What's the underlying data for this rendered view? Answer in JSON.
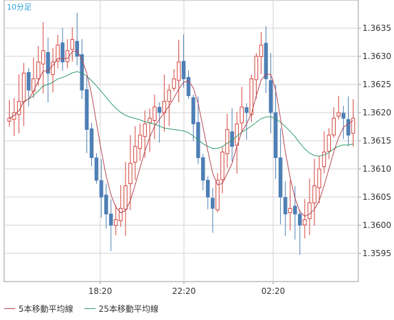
{
  "chart_data": {
    "type": "candlestick",
    "timeframe_label": "10分足",
    "x_tick_labels": [
      "18:20",
      "22:20",
      "02:20"
    ],
    "ylim": [
      1.359,
      1.364
    ],
    "y_ticks": [
      "1.3595",
      "1.3600",
      "1.3605",
      "1.3610",
      "1.3615",
      "1.3620",
      "1.3625",
      "1.3630",
      "1.3635"
    ],
    "grid": true,
    "colors": {
      "up": "#d4443c",
      "down": "#4e7fb5",
      "ma5": "#b64552",
      "ma25": "#2f9c6a",
      "grid": "#d2d2d2",
      "frame": "#999999"
    },
    "legend": [
      {
        "name": "5本移動平均線",
        "color": "#b64552"
      },
      {
        "name": "25本移動平均線",
        "color": "#2f9c6a"
      }
    ],
    "close": [
      1.3619,
      1.362,
      1.3622,
      1.3627,
      1.3624,
      1.3626,
      1.3629,
      1.3631,
      1.3627,
      1.3629,
      1.3632,
      1.3629,
      1.3631,
      1.3633,
      1.363,
      1.3624,
      1.3617,
      1.3612,
      1.3608,
      1.3605,
      1.3602,
      1.36,
      1.3601,
      1.3603,
      1.3607,
      1.3611,
      1.3614,
      1.3616,
      1.3618,
      1.3619,
      1.3621,
      1.362,
      1.3622,
      1.3624,
      1.3626,
      1.3629,
      1.3626,
      1.3623,
      1.3618,
      1.3612,
      1.3608,
      1.3605,
      1.3603,
      1.3608,
      1.3613,
      1.3617,
      1.3614,
      1.3618,
      1.3621,
      1.362,
      1.3626,
      1.363,
      1.3632,
      1.3626,
      1.362,
      1.3612,
      1.3605,
      1.3602,
      1.3603,
      1.3602,
      1.36,
      1.3601,
      1.3604,
      1.3607,
      1.361,
      1.3613,
      1.3616,
      1.3619,
      1.362,
      1.3619,
      1.3616,
      1.3619
    ]
  }
}
